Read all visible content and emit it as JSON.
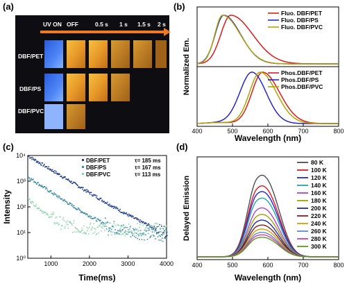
{
  "figure": {
    "panel_labels": [
      "(a)",
      "(b)",
      "(c)",
      "(d)"
    ]
  },
  "panel_a": {
    "timeline": [
      "UV ON",
      "OFF",
      "0.5 s",
      "1 s",
      "1.5 s",
      "2 s"
    ],
    "rows": [
      "DBF/PET",
      "DBF/PS",
      "DBF/PVC"
    ],
    "colors": {
      "uv_on": "#3f78ee",
      "afterglow": "#e0a030",
      "background": "#0d0d12",
      "arrow": "#f07a24"
    },
    "afterglow_visible_until": {
      "DBF/PET": "2 s",
      "DBF/PS": "1 s",
      "DBF/PVC": "OFF"
    }
  },
  "chart_data": [
    {
      "id": "b-top",
      "type": "line",
      "xlabel": "Wavelength (nm)",
      "ylabel": "Normalized Em.",
      "xlim": [
        400,
        800
      ],
      "xticks": [
        "400",
        "500",
        "600",
        "700",
        "800"
      ],
      "legend_position": "top-right",
      "series": [
        {
          "name": "Fluo. DBF/PET",
          "color": "#e01818",
          "peak_x": 495,
          "peak_y": 1.0
        },
        {
          "name": "Fluo. DBF/PS",
          "color": "#2424cc",
          "peak_x": 475,
          "peak_y": 1.0
        },
        {
          "name": "Fluo. DBF/PVC",
          "color": "#b0a400",
          "peak_x": 472,
          "peak_y": 1.0
        }
      ]
    },
    {
      "id": "b-bottom",
      "type": "line",
      "xlim": [
        400,
        800
      ],
      "legend_position": "top-right",
      "series": [
        {
          "name": "Phos.DBF/PET",
          "color": "#e01818",
          "peak_x": 585,
          "peak_y": 1.0
        },
        {
          "name": "Phos.DBF/PS",
          "color": "#2424cc",
          "peak_x": 555,
          "peak_y": 1.0
        },
        {
          "name": "Phos.DBF/PVC",
          "color": "#b0a400",
          "peak_x": 578,
          "peak_y": 1.0
        }
      ]
    },
    {
      "id": "c",
      "type": "scatter",
      "xlabel": "Time(ms)",
      "ylabel": "Intensity",
      "xlim": [
        400,
        4000
      ],
      "ylim": [
        1,
        10000
      ],
      "yscale": "log",
      "xticks": [
        "1000",
        "2000",
        "3000",
        "4000"
      ],
      "yticks": [
        "10⁰",
        "10¹",
        "10²",
        "10³",
        "10⁴"
      ],
      "legend_position": "top-right",
      "series": [
        {
          "name": "DBF/PET",
          "tau": "τ= 185 ms",
          "color": "#1f3f8c",
          "start": 10000,
          "floor": 5
        },
        {
          "name": "DBF/PS",
          "tau": "τ= 167 ms",
          "color": "#3f8ca8",
          "start": 1500,
          "floor": 8
        },
        {
          "name": "DBF/PVC",
          "tau": "τ= 113 ms",
          "color": "#8fd6b0",
          "start": 200,
          "floor": 14
        }
      ]
    },
    {
      "id": "d",
      "type": "line",
      "xlabel": "Wavelength (nm)",
      "ylabel": "Delayed Emission",
      "xlim": [
        400,
        800
      ],
      "xticks": [
        "400",
        "500",
        "600",
        "700",
        "800"
      ],
      "legend_position": "top-right",
      "series": [
        {
          "name": "80 K",
          "color": "#4d4d4d",
          "peak": 1.0
        },
        {
          "name": "100 K",
          "color": "#e01818",
          "peak": 0.87
        },
        {
          "name": "120 K",
          "color": "#2424e0",
          "peak": 0.8
        },
        {
          "name": "140 K",
          "color": "#22a8a0",
          "peak": 0.72
        },
        {
          "name": "160 K",
          "color": "#b040d0",
          "peak": 0.6
        },
        {
          "name": "180 K",
          "color": "#a0a000",
          "peak": 0.52
        },
        {
          "name": "200 K",
          "color": "#1a2aa0",
          "peak": 0.45
        },
        {
          "name": "220 K",
          "color": "#8a1a1a",
          "peak": 0.39
        },
        {
          "name": "240 K",
          "color": "#d4a000",
          "peak": 0.34
        },
        {
          "name": "260 K",
          "color": "#5a8ad0",
          "peak": 0.3
        },
        {
          "name": "280 K",
          "color": "#d040a0",
          "peak": 0.27
        },
        {
          "name": "300 K",
          "color": "#5a9a20",
          "peak": 0.24
        }
      ]
    }
  ]
}
